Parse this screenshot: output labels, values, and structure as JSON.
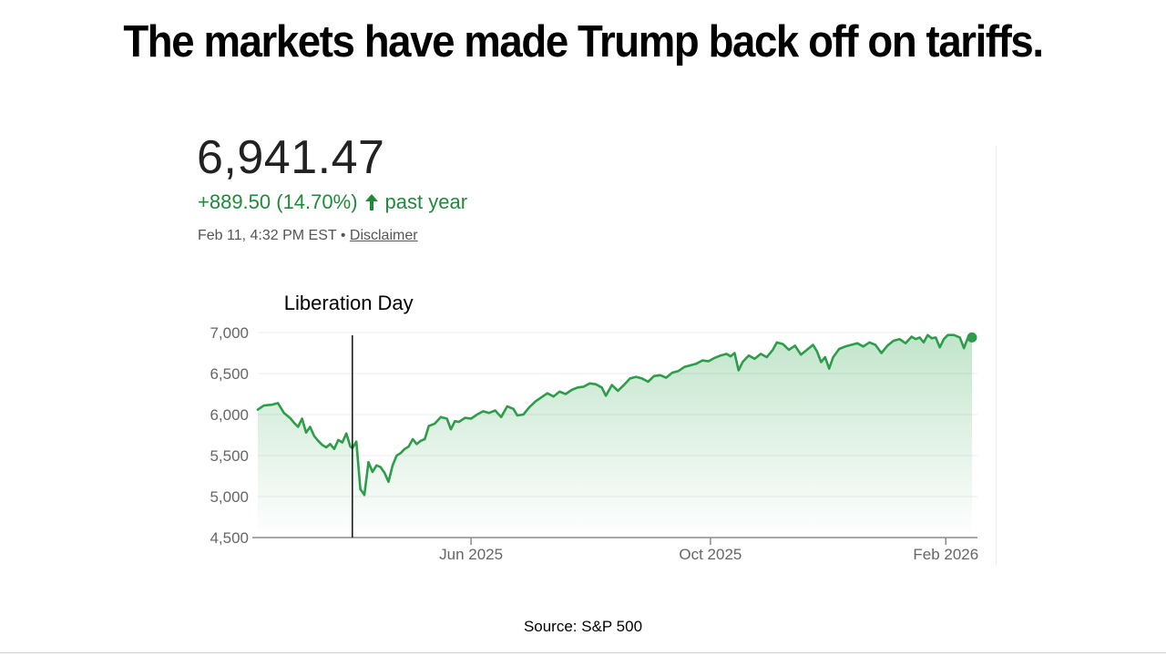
{
  "slide": {
    "title": "The markets have made Trump back off on tariffs.",
    "source": "Source: S&P 500"
  },
  "quote": {
    "price": "6,941.47",
    "change": "+889.50 (14.70%)",
    "period": "past year",
    "timestamp": "Feb 11, 4:32 PM EST",
    "separator": "•",
    "disclaimer": "Disclaimer"
  },
  "colors": {
    "line": "#2e9d4a",
    "fill": "#34a853",
    "up": "#1f8a3b",
    "marker": "#111111"
  },
  "chart_data": {
    "type": "area",
    "title": "",
    "xlabel": "",
    "ylabel": "",
    "ylim": [
      4500,
      7000
    ],
    "yticks": [
      7000,
      6500,
      6000,
      5500,
      5000,
      4500
    ],
    "ytick_labels": [
      "7,000",
      "6,500",
      "6,000",
      "5,500",
      "5,000",
      "4,500"
    ],
    "xlim": [
      0,
      355
    ],
    "xticks": [
      {
        "day": 106,
        "label": "Jun 2025"
      },
      {
        "day": 225,
        "label": "Oct 2025"
      },
      {
        "day": 342,
        "label": "Feb 2026"
      }
    ],
    "annotation": {
      "label": "Liberation Day",
      "day": 47
    },
    "series": [
      {
        "name": "S&P 500",
        "points": [
          [
            0,
            6060
          ],
          [
            3,
            6110
          ],
          [
            7,
            6120
          ],
          [
            10,
            6140
          ],
          [
            13,
            6020
          ],
          [
            16,
            5960
          ],
          [
            18,
            5900
          ],
          [
            20,
            5850
          ],
          [
            22,
            5950
          ],
          [
            24,
            5780
          ],
          [
            26,
            5850
          ],
          [
            28,
            5740
          ],
          [
            30,
            5680
          ],
          [
            32,
            5630
          ],
          [
            34,
            5600
          ],
          [
            36,
            5640
          ],
          [
            38,
            5580
          ],
          [
            40,
            5690
          ],
          [
            42,
            5660
          ],
          [
            44,
            5770
          ],
          [
            46,
            5610
          ],
          [
            47,
            5590
          ],
          [
            49,
            5670
          ],
          [
            51,
            5090
          ],
          [
            53,
            5020
          ],
          [
            55,
            5420
          ],
          [
            57,
            5300
          ],
          [
            59,
            5380
          ],
          [
            61,
            5360
          ],
          [
            63,
            5290
          ],
          [
            65,
            5180
          ],
          [
            67,
            5380
          ],
          [
            69,
            5500
          ],
          [
            71,
            5530
          ],
          [
            73,
            5580
          ],
          [
            75,
            5610
          ],
          [
            77,
            5700
          ],
          [
            79,
            5640
          ],
          [
            81,
            5680
          ],
          [
            83,
            5700
          ],
          [
            85,
            5860
          ],
          [
            88,
            5890
          ],
          [
            91,
            5970
          ],
          [
            94,
            5950
          ],
          [
            96,
            5820
          ],
          [
            98,
            5920
          ],
          [
            100,
            5910
          ],
          [
            103,
            5960
          ],
          [
            106,
            5950
          ],
          [
            109,
            6000
          ],
          [
            112,
            6040
          ],
          [
            115,
            6020
          ],
          [
            118,
            6050
          ],
          [
            121,
            5970
          ],
          [
            124,
            6100
          ],
          [
            127,
            6070
          ],
          [
            129,
            5990
          ],
          [
            132,
            6000
          ],
          [
            135,
            6090
          ],
          [
            138,
            6160
          ],
          [
            141,
            6210
          ],
          [
            144,
            6260
          ],
          [
            147,
            6220
          ],
          [
            150,
            6280
          ],
          [
            153,
            6250
          ],
          [
            156,
            6300
          ],
          [
            159,
            6330
          ],
          [
            162,
            6340
          ],
          [
            165,
            6380
          ],
          [
            168,
            6370
          ],
          [
            171,
            6330
          ],
          [
            173,
            6230
          ],
          [
            176,
            6360
          ],
          [
            179,
            6290
          ],
          [
            182,
            6360
          ],
          [
            185,
            6440
          ],
          [
            188,
            6460
          ],
          [
            191,
            6440
          ],
          [
            194,
            6400
          ],
          [
            197,
            6470
          ],
          [
            200,
            6480
          ],
          [
            203,
            6450
          ],
          [
            206,
            6510
          ],
          [
            209,
            6530
          ],
          [
            212,
            6580
          ],
          [
            215,
            6600
          ],
          [
            218,
            6620
          ],
          [
            221,
            6660
          ],
          [
            224,
            6650
          ],
          [
            227,
            6690
          ],
          [
            230,
            6720
          ],
          [
            233,
            6740
          ],
          [
            235,
            6710
          ],
          [
            237,
            6750
          ],
          [
            239,
            6540
          ],
          [
            241,
            6640
          ],
          [
            244,
            6720
          ],
          [
            247,
            6680
          ],
          [
            250,
            6740
          ],
          [
            253,
            6700
          ],
          [
            256,
            6790
          ],
          [
            258,
            6880
          ],
          [
            261,
            6860
          ],
          [
            264,
            6790
          ],
          [
            267,
            6840
          ],
          [
            270,
            6730
          ],
          [
            273,
            6790
          ],
          [
            276,
            6850
          ],
          [
            278,
            6770
          ],
          [
            280,
            6640
          ],
          [
            282,
            6700
          ],
          [
            284,
            6560
          ],
          [
            286,
            6700
          ],
          [
            289,
            6800
          ],
          [
            292,
            6830
          ],
          [
            295,
            6850
          ],
          [
            298,
            6870
          ],
          [
            301,
            6830
          ],
          [
            304,
            6880
          ],
          [
            307,
            6850
          ],
          [
            310,
            6750
          ],
          [
            313,
            6840
          ],
          [
            316,
            6900
          ],
          [
            319,
            6920
          ],
          [
            322,
            6870
          ],
          [
            325,
            6950
          ],
          [
            327,
            6920
          ],
          [
            329,
            6940
          ],
          [
            331,
            6880
          ],
          [
            333,
            6970
          ],
          [
            335,
            6930
          ],
          [
            337,
            6940
          ],
          [
            339,
            6820
          ],
          [
            341,
            6920
          ],
          [
            343,
            6970
          ],
          [
            346,
            6970
          ],
          [
            349,
            6940
          ],
          [
            351,
            6810
          ],
          [
            353,
            6940
          ],
          [
            355,
            6940
          ]
        ]
      }
    ]
  }
}
